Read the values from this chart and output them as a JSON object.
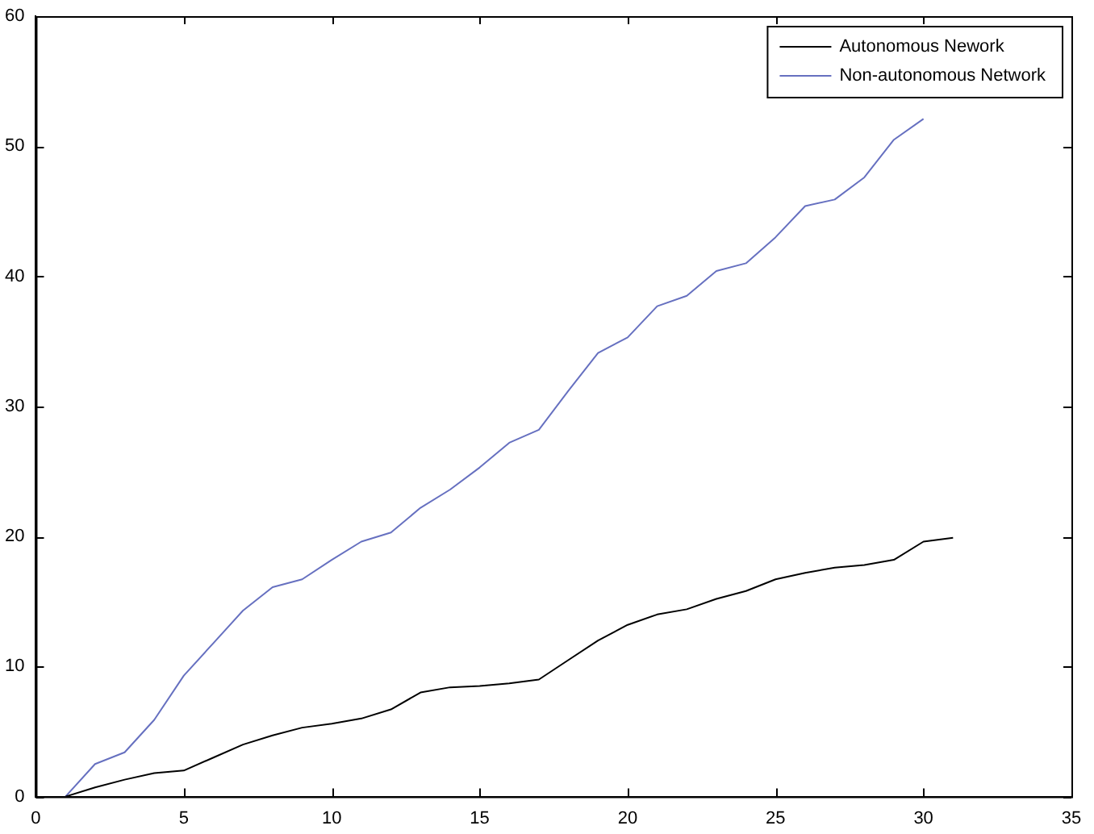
{
  "chart_data": {
    "type": "line",
    "x": [
      1,
      2,
      3,
      4,
      5,
      6,
      7,
      8,
      9,
      10,
      11,
      12,
      13,
      14,
      15,
      16,
      17,
      18,
      19,
      20,
      21,
      22,
      23,
      24,
      25,
      26,
      27,
      28,
      29,
      30,
      31
    ],
    "series": [
      {
        "name": "Autonomous Nework",
        "color": "#000000",
        "values": [
          0,
          0.7,
          1.3,
          1.8,
          2.0,
          3.0,
          4.0,
          4.7,
          5.3,
          5.6,
          6.0,
          6.7,
          8.0,
          8.4,
          8.5,
          8.7,
          9.0,
          10.5,
          12.0,
          13.2,
          14.0,
          14.4,
          15.2,
          15.8,
          16.7,
          17.2,
          17.6,
          17.8,
          18.2,
          19.6,
          19.9
        ]
      },
      {
        "name": "Non-autonomous Network",
        "color": "#6670c0",
        "values": [
          0,
          2.5,
          3.4,
          5.9,
          9.3,
          11.8,
          14.3,
          16.1,
          16.7,
          18.2,
          19.6,
          20.3,
          22.2,
          23.6,
          25.3,
          27.2,
          28.2,
          31.2,
          34.1,
          35.3,
          37.7,
          38.5,
          40.4,
          41.0,
          43.0,
          45.4,
          45.9,
          47.6,
          50.5,
          52.1,
          null
        ]
      }
    ],
    "xlim": [
      0,
      35
    ],
    "xticks": [
      0,
      5,
      10,
      15,
      20,
      25,
      30,
      35
    ],
    "ylim": [
      0,
      60
    ],
    "yticks": [
      0,
      10,
      20,
      30,
      40,
      50,
      60
    ],
    "grid": false,
    "legend": "top right",
    "marker": "none",
    "line_style": "solid"
  }
}
